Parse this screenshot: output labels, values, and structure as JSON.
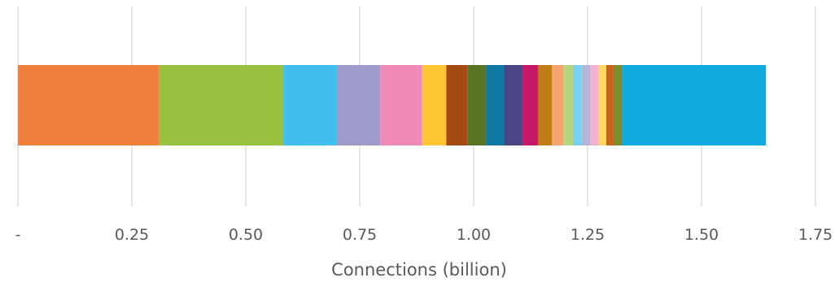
{
  "chart_data": {
    "type": "bar",
    "orientation": "horizontal",
    "stacked": true,
    "xlabel": "Connections (billion)",
    "ylabel": "",
    "xlim": [
      0,
      1.75
    ],
    "grid": true,
    "legend": "none",
    "ticks": [
      {
        "value": 0,
        "label": "-"
      },
      {
        "value": 0.25,
        "label": "0.25"
      },
      {
        "value": 0.5,
        "label": "0.50"
      },
      {
        "value": 0.75,
        "label": "0.75"
      },
      {
        "value": 1.0,
        "label": "1.00"
      },
      {
        "value": 1.25,
        "label": "1.25"
      },
      {
        "value": 1.5,
        "label": "1.50"
      },
      {
        "value": 1.75,
        "label": "1.75"
      }
    ],
    "segments": [
      {
        "value": 0.31,
        "color": "#F07F3C"
      },
      {
        "value": 0.272,
        "color": "#97C13F"
      },
      {
        "value": 0.118,
        "color": "#40BEED"
      },
      {
        "value": 0.095,
        "color": "#9E9BC9"
      },
      {
        "value": 0.092,
        "color": "#EF89B5"
      },
      {
        "value": 0.053,
        "color": "#FFC533"
      },
      {
        "value": 0.046,
        "color": "#A44A12"
      },
      {
        "value": 0.041,
        "color": "#5A7425"
      },
      {
        "value": 0.04,
        "color": "#1279A3"
      },
      {
        "value": 0.04,
        "color": "#4A4683"
      },
      {
        "value": 0.034,
        "color": "#C8186A"
      },
      {
        "value": 0.031,
        "color": "#C07B12"
      },
      {
        "value": 0.025,
        "color": "#F4A46F"
      },
      {
        "value": 0.021,
        "color": "#B7D57E"
      },
      {
        "value": 0.019,
        "color": "#79CFF0"
      },
      {
        "value": 0.019,
        "color": "#B5B4D8"
      },
      {
        "value": 0.018,
        "color": "#F4AFCC"
      },
      {
        "value": 0.017,
        "color": "#FFD75F"
      },
      {
        "value": 0.016,
        "color": "#C8651D"
      },
      {
        "value": 0.018,
        "color": "#7C8C2A"
      },
      {
        "value": 0.316,
        "color": "#12A9E0"
      }
    ]
  }
}
